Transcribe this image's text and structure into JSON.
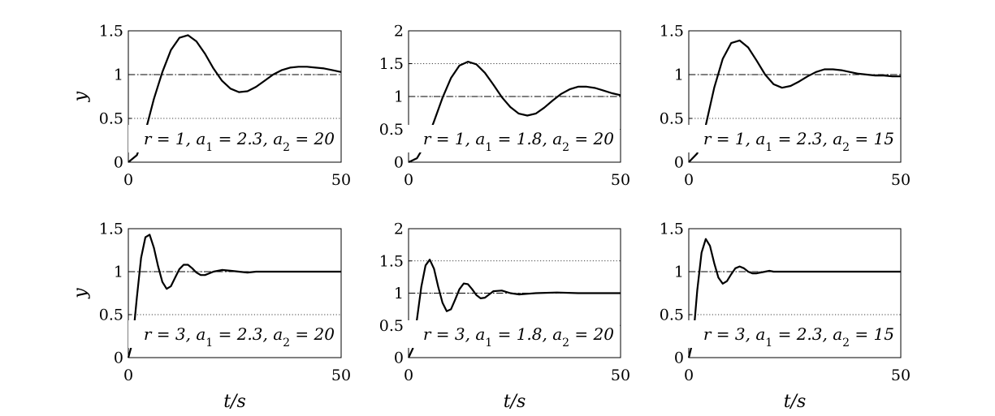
{
  "chart_data": [
    {
      "type": "line",
      "row": 0,
      "col": 0,
      "xlim": [
        0,
        50
      ],
      "ylim": [
        0,
        1.5
      ],
      "xticks": [
        "0",
        "50"
      ],
      "yticks": [
        "0",
        "0.5",
        "1",
        "1.5"
      ],
      "ylabel": "y",
      "xlabel": "",
      "grid": "horizontal-dotted",
      "reference": 1,
      "annotation": "r = 1, a1 = 2.3, a2 = 20",
      "series": [
        {
          "x": [
            0,
            2,
            4,
            6,
            8,
            10,
            12,
            14,
            16,
            18,
            20,
            22,
            24,
            26,
            28,
            30,
            32,
            34,
            36,
            38,
            40,
            42,
            44,
            46,
            48,
            50
          ],
          "values": [
            0,
            0.08,
            0.35,
            0.72,
            1.03,
            1.28,
            1.42,
            1.45,
            1.38,
            1.24,
            1.07,
            0.93,
            0.84,
            0.8,
            0.81,
            0.86,
            0.93,
            1.0,
            1.05,
            1.08,
            1.09,
            1.09,
            1.08,
            1.07,
            1.05,
            1.03
          ]
        }
      ]
    },
    {
      "type": "line",
      "row": 0,
      "col": 1,
      "xlim": [
        0,
        50
      ],
      "ylim": [
        0,
        2
      ],
      "xticks": [
        "0",
        "50"
      ],
      "yticks": [
        "0",
        "0.5",
        "1",
        "1.5",
        "2"
      ],
      "ylabel": "",
      "xlabel": "",
      "grid": "horizontal-dotted",
      "reference": 1,
      "annotation": "r = 1, a1 = 1.8, a2 = 20",
      "series": [
        {
          "x": [
            0,
            2,
            4,
            6,
            8,
            10,
            12,
            14,
            16,
            18,
            20,
            22,
            24,
            26,
            28,
            30,
            32,
            34,
            36,
            38,
            40,
            42,
            44,
            46,
            48,
            50
          ],
          "values": [
            0,
            0.06,
            0.28,
            0.62,
            0.98,
            1.28,
            1.47,
            1.53,
            1.49,
            1.36,
            1.18,
            0.99,
            0.84,
            0.74,
            0.71,
            0.74,
            0.83,
            0.94,
            1.04,
            1.11,
            1.15,
            1.15,
            1.13,
            1.09,
            1.05,
            1.02
          ]
        }
      ]
    },
    {
      "type": "line",
      "row": 0,
      "col": 2,
      "xlim": [
        0,
        50
      ],
      "ylim": [
        0,
        1.5
      ],
      "xticks": [
        "0",
        "50"
      ],
      "yticks": [
        "0",
        "0.5",
        "1",
        "1.5"
      ],
      "ylabel": "",
      "xlabel": "",
      "grid": "horizontal-dotted",
      "reference": 1,
      "annotation": "r = 1, a1 = 2.3, a2 = 15",
      "series": [
        {
          "x": [
            0,
            2,
            4,
            6,
            8,
            10,
            12,
            14,
            16,
            18,
            20,
            22,
            24,
            26,
            28,
            30,
            32,
            34,
            36,
            38,
            40,
            42,
            44,
            46,
            48,
            50
          ],
          "values": [
            0,
            0.1,
            0.42,
            0.85,
            1.18,
            1.36,
            1.39,
            1.31,
            1.16,
            1.0,
            0.89,
            0.85,
            0.87,
            0.92,
            0.98,
            1.03,
            1.06,
            1.06,
            1.05,
            1.03,
            1.01,
            1.0,
            0.99,
            0.99,
            0.98,
            0.98
          ]
        }
      ]
    },
    {
      "type": "line",
      "row": 1,
      "col": 0,
      "xlim": [
        0,
        50
      ],
      "ylim": [
        0,
        1.5
      ],
      "xticks": [
        "0",
        "50"
      ],
      "yticks": [
        "0",
        "0.5",
        "1",
        "1.5"
      ],
      "ylabel": "y",
      "xlabel": "t/s",
      "grid": "horizontal-dotted",
      "reference": 1,
      "annotation": "r = 3, a1 = 2.3, a2 = 20",
      "series": [
        {
          "x": [
            0,
            1,
            2,
            3,
            4,
            5,
            6,
            7,
            8,
            9,
            10,
            11,
            12,
            13,
            14,
            15,
            16,
            17,
            18,
            19,
            20,
            22,
            24,
            26,
            28,
            30,
            35,
            40,
            45,
            50
          ],
          "values": [
            0,
            0.18,
            0.7,
            1.16,
            1.4,
            1.43,
            1.28,
            1.06,
            0.88,
            0.8,
            0.83,
            0.93,
            1.03,
            1.08,
            1.08,
            1.04,
            0.99,
            0.96,
            0.96,
            0.98,
            1.0,
            1.02,
            1.01,
            1.0,
            0.99,
            1.0,
            1.0,
            1.0,
            1.0,
            1.0
          ]
        }
      ]
    },
    {
      "type": "line",
      "row": 1,
      "col": 1,
      "xlim": [
        0,
        50
      ],
      "ylim": [
        0,
        2
      ],
      "xticks": [
        "0",
        "50"
      ],
      "yticks": [
        "0",
        "0.5",
        "1",
        "1.5",
        "2"
      ],
      "ylabel": "",
      "xlabel": "t/s",
      "grid": "horizontal-dotted",
      "reference": 1,
      "annotation": "r = 3, a1 = 1.8, a2 = 20",
      "series": [
        {
          "x": [
            0,
            1,
            2,
            3,
            4,
            5,
            6,
            7,
            8,
            9,
            10,
            11,
            12,
            13,
            14,
            15,
            16,
            17,
            18,
            19,
            20,
            22,
            24,
            26,
            28,
            30,
            35,
            40,
            45,
            50
          ],
          "values": [
            0,
            0.14,
            0.6,
            1.1,
            1.43,
            1.52,
            1.38,
            1.1,
            0.85,
            0.72,
            0.75,
            0.9,
            1.06,
            1.15,
            1.14,
            1.06,
            0.97,
            0.92,
            0.93,
            0.98,
            1.03,
            1.04,
            1.0,
            0.98,
            0.99,
            1.0,
            1.01,
            1.0,
            1.0,
            1.0
          ]
        }
      ]
    },
    {
      "type": "line",
      "row": 1,
      "col": 2,
      "xlim": [
        0,
        50
      ],
      "ylim": [
        0,
        1.5
      ],
      "xticks": [
        "0",
        "50"
      ],
      "yticks": [
        "0",
        "0.5",
        "1",
        "1.5"
      ],
      "ylabel": "",
      "xlabel": "t/s",
      "grid": "horizontal-dotted",
      "reference": 1,
      "annotation": "r = 3, a1 = 2.3, a2 = 15",
      "series": [
        {
          "x": [
            0,
            1,
            2,
            3,
            4,
            5,
            6,
            7,
            8,
            9,
            10,
            11,
            12,
            13,
            14,
            15,
            16,
            17,
            18,
            19,
            20,
            22,
            24,
            26,
            28,
            30,
            35,
            40,
            45,
            50
          ],
          "values": [
            0,
            0.2,
            0.78,
            1.22,
            1.38,
            1.3,
            1.1,
            0.93,
            0.86,
            0.89,
            0.97,
            1.04,
            1.06,
            1.04,
            1.0,
            0.98,
            0.98,
            0.99,
            1.0,
            1.01,
            1.0,
            1.0,
            1.0,
            1.0,
            1.0,
            1.0,
            1.0,
            1.0,
            1.0,
            1.0
          ]
        }
      ]
    }
  ]
}
